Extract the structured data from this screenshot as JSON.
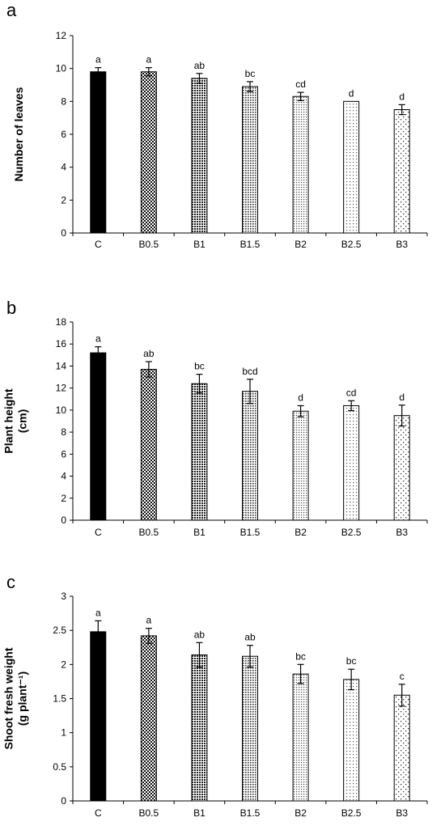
{
  "chart_data": [
    {
      "type": "bar",
      "panel": "a",
      "ylabel": [
        "Number of leaves"
      ],
      "categories": [
        "C",
        "B0.5",
        "B1",
        "B1.5",
        "B2",
        "B2.5",
        "B3"
      ],
      "values": [
        9.8,
        9.8,
        9.4,
        8.9,
        8.3,
        8.0,
        7.5
      ],
      "errors": [
        0.25,
        0.25,
        0.3,
        0.3,
        0.25,
        0.0,
        0.3
      ],
      "letters": [
        "a",
        "a",
        "ab",
        "bc",
        "cd",
        "d",
        "d"
      ],
      "ylim": [
        0,
        12
      ],
      "yticks": [
        0,
        2,
        4,
        6,
        8,
        10,
        12
      ],
      "ytick_labels": [
        "0",
        "2",
        "4",
        "6",
        "8",
        "10",
        "12"
      ]
    },
    {
      "type": "bar",
      "panel": "b",
      "ylabel": [
        "Plant height",
        "(cm)"
      ],
      "categories": [
        "C",
        "B0.5",
        "B1",
        "B1.5",
        "B2",
        "B2.5",
        "B3"
      ],
      "values": [
        15.2,
        13.7,
        12.4,
        11.7,
        9.9,
        10.4,
        9.5
      ],
      "errors": [
        0.55,
        0.7,
        0.85,
        1.1,
        0.5,
        0.45,
        0.95
      ],
      "letters": [
        "a",
        "ab",
        "bc",
        "bcd",
        "d",
        "cd",
        "d"
      ],
      "ylim": [
        0,
        18
      ],
      "yticks": [
        0,
        2,
        4,
        6,
        8,
        10,
        12,
        14,
        16,
        18
      ],
      "ytick_labels": [
        "0",
        "2",
        "4",
        "6",
        "8",
        "10",
        "12",
        "14",
        "16",
        "18"
      ]
    },
    {
      "type": "bar",
      "panel": "c",
      "ylabel": [
        "Shoot fresh weight",
        "(g plant⁻¹)"
      ],
      "categories": [
        "C",
        "B0.5",
        "B1",
        "B1.5",
        "B2",
        "B2.5",
        "B3"
      ],
      "values": [
        2.48,
        2.42,
        2.14,
        2.12,
        1.86,
        1.78,
        1.55
      ],
      "errors": [
        0.16,
        0.11,
        0.18,
        0.16,
        0.14,
        0.15,
        0.16
      ],
      "letters": [
        "a",
        "a",
        "ab",
        "ab",
        "bc",
        "bc",
        "c"
      ],
      "ylim": [
        0,
        3
      ],
      "yticks": [
        0,
        0.5,
        1,
        1.5,
        2,
        2.5,
        3
      ],
      "ytick_labels": [
        "0",
        "0.5",
        "1",
        "1.5",
        "2",
        "2.5",
        "3"
      ]
    }
  ],
  "bar_fills": [
    "solid-black",
    "dense-check",
    "dense-dot",
    "medium-dot",
    "light-dot",
    "lighter-dot",
    "sparse-dot"
  ]
}
